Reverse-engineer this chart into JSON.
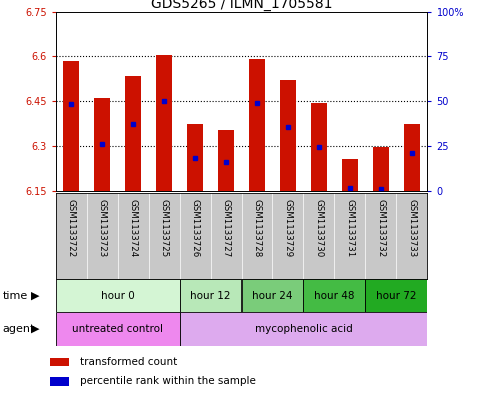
{
  "title": "GDS5265 / ILMN_1705581",
  "samples": [
    "GSM1133722",
    "GSM1133723",
    "GSM1133724",
    "GSM1133725",
    "GSM1133726",
    "GSM1133727",
    "GSM1133728",
    "GSM1133729",
    "GSM1133730",
    "GSM1133731",
    "GSM1133732",
    "GSM1133733"
  ],
  "bar_tops": [
    6.585,
    6.46,
    6.535,
    6.605,
    6.375,
    6.355,
    6.59,
    6.52,
    6.445,
    6.255,
    6.295,
    6.375
  ],
  "blue_values": [
    6.44,
    6.305,
    6.375,
    6.45,
    6.26,
    6.245,
    6.445,
    6.365,
    6.295,
    6.16,
    6.155,
    6.275
  ],
  "bar_base": 6.15,
  "ylim_left": [
    6.15,
    6.75
  ],
  "ylim_right": [
    0,
    100
  ],
  "yticks_left": [
    6.15,
    6.3,
    6.45,
    6.6,
    6.75
  ],
  "yticks_right": [
    0,
    25,
    50,
    75,
    100
  ],
  "ytick_labels_left": [
    "6.15",
    "6.3",
    "6.45",
    "6.6",
    "6.75"
  ],
  "ytick_labels_right": [
    "0",
    "25",
    "50",
    "75",
    "100%"
  ],
  "hlines": [
    6.3,
    6.45,
    6.6
  ],
  "time_groups": [
    {
      "label": "hour 0",
      "start": 0,
      "end": 4,
      "color": "#d4f5d4"
    },
    {
      "label": "hour 12",
      "start": 4,
      "end": 6,
      "color": "#b8e8b8"
    },
    {
      "label": "hour 24",
      "start": 6,
      "end": 8,
      "color": "#7acc7a"
    },
    {
      "label": "hour 48",
      "start": 8,
      "end": 10,
      "color": "#44bb44"
    },
    {
      "label": "hour 72",
      "start": 10,
      "end": 12,
      "color": "#22aa22"
    }
  ],
  "agent_groups": [
    {
      "label": "untreated control",
      "start": 0,
      "end": 4,
      "color": "#ee88ee"
    },
    {
      "label": "mycophenolic acid",
      "start": 4,
      "end": 12,
      "color": "#ddaaee"
    }
  ],
  "bar_color": "#cc1100",
  "blue_color": "#0000cc",
  "plot_bg": "#ffffff",
  "left_color": "#cc1100",
  "right_color": "#0000cc",
  "title_fontsize": 10,
  "tick_fontsize": 7,
  "bar_width": 0.5,
  "sample_bg": "#c8c8c8"
}
